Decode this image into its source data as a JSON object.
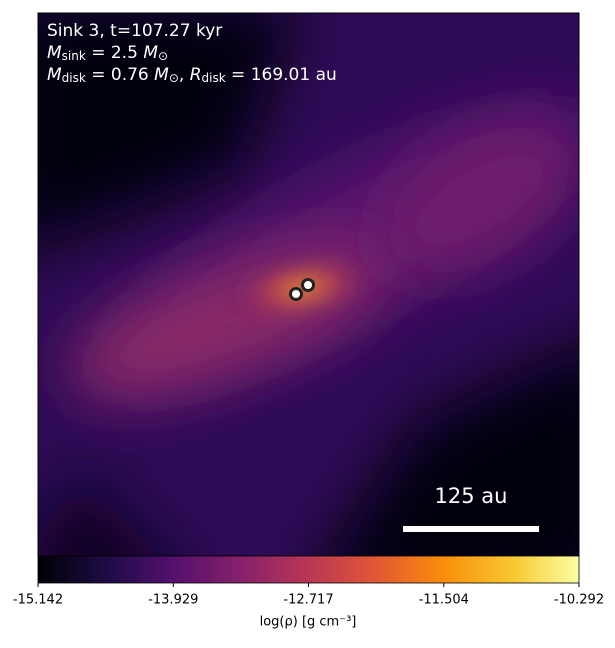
{
  "chart_data": {
    "type": "image",
    "annotation": [
      [
        {
          "text": "Sink 3, t=107.27 kyr",
          "style": "normal"
        }
      ],
      [
        {
          "text": "M",
          "style": "italic"
        },
        {
          "text": "sink",
          "style": "sub"
        },
        {
          "text": " = 2.5 ",
          "style": "normal"
        },
        {
          "text": "M",
          "style": "italic"
        },
        {
          "text": "⊙",
          "style": "sub"
        }
      ],
      [
        {
          "text": "M",
          "style": "italic"
        },
        {
          "text": "disk",
          "style": "sub"
        },
        {
          "text": " = 0.76 ",
          "style": "normal"
        },
        {
          "text": "M",
          "style": "italic"
        },
        {
          "text": "⊙",
          "style": "sub"
        },
        {
          "text": ", ",
          "style": "normal"
        },
        {
          "text": "R",
          "style": "italic"
        },
        {
          "text": "disk",
          "style": "sub"
        },
        {
          "text": " = 169.01 au",
          "style": "normal"
        }
      ]
    ],
    "scale_bar": "125 au",
    "colorbar": {
      "label": "log(ρ) [g cm⁻³]",
      "lim": [
        -15.142,
        -10.292
      ],
      "ticks": [
        -15.142,
        -13.929,
        -12.717,
        -11.504,
        -10.292
      ]
    }
  }
}
